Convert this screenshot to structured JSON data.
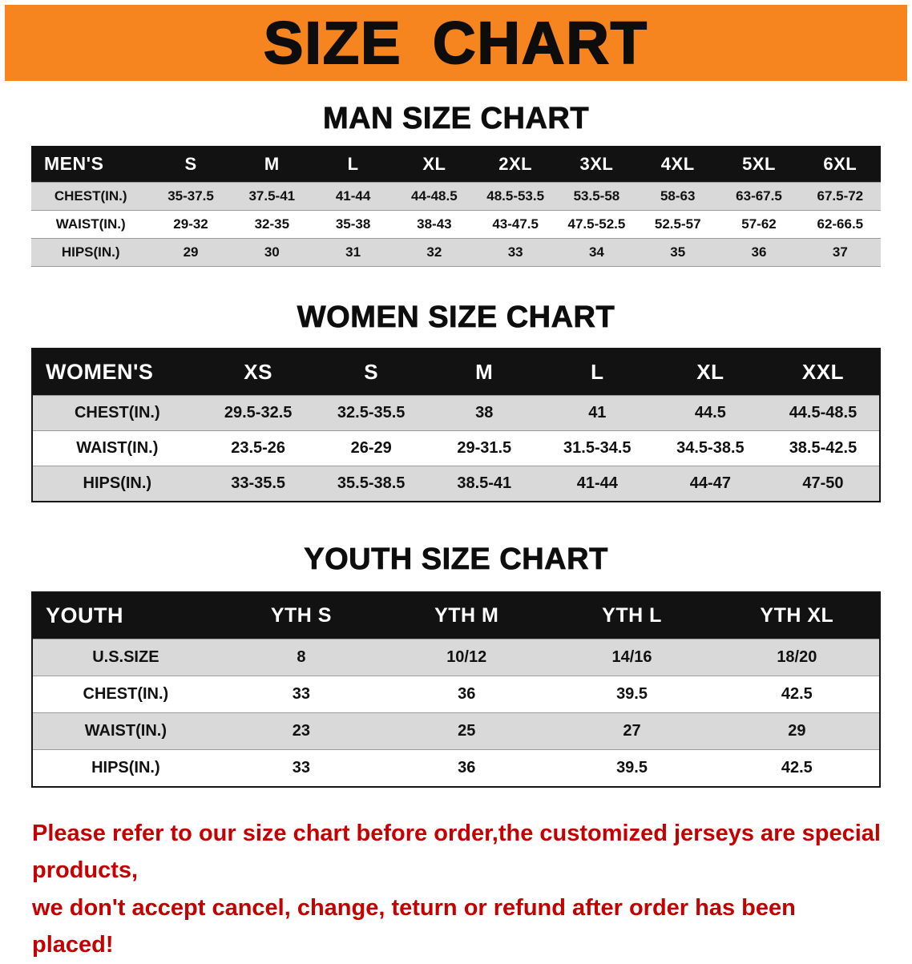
{
  "banner": {
    "title": "SIZE CHART",
    "bg_color": "#F6851F"
  },
  "sections": [
    {
      "id": "men",
      "title": "MAN SIZE CHART",
      "table": {
        "header": [
          "MEN'S",
          "S",
          "M",
          "L",
          "XL",
          "2XL",
          "3XL",
          "4XL",
          "5XL",
          "6XL"
        ],
        "rows": [
          [
            "CHEST(IN.)",
            "35-37.5",
            "37.5-41",
            "41-44",
            "44-48.5",
            "48.5-53.5",
            "53.5-58",
            "58-63",
            "63-67.5",
            "67.5-72"
          ],
          [
            "WAIST(IN.)",
            "29-32",
            "32-35",
            "35-38",
            "38-43",
            "43-47.5",
            "47.5-52.5",
            "52.5-57",
            "57-62",
            "62-66.5"
          ],
          [
            "HIPS(IN.)",
            "29",
            "30",
            "31",
            "32",
            "33",
            "34",
            "35",
            "36",
            "37"
          ]
        ]
      }
    },
    {
      "id": "women",
      "title": "WOMEN SIZE CHART",
      "table": {
        "header": [
          "WOMEN'S",
          "XS",
          "S",
          "M",
          "L",
          "XL",
          "XXL"
        ],
        "rows": [
          [
            "CHEST(IN.)",
            "29.5-32.5",
            "32.5-35.5",
            "38",
            "41",
            "44.5",
            "44.5-48.5"
          ],
          [
            "WAIST(IN.)",
            "23.5-26",
            "26-29",
            "29-31.5",
            "31.5-34.5",
            "34.5-38.5",
            "38.5-42.5"
          ],
          [
            "HIPS(IN.)",
            "33-35.5",
            "35.5-38.5",
            "38.5-41",
            "41-44",
            "44-47",
            "47-50"
          ]
        ]
      }
    },
    {
      "id": "youth",
      "title": "YOUTH SIZE CHART",
      "table": {
        "header": [
          "YOUTH",
          "YTH S",
          "YTH M",
          "YTH L",
          "YTH XL"
        ],
        "rows": [
          [
            "U.S.SIZE",
            "8",
            "10/12",
            "14/16",
            "18/20"
          ],
          [
            "CHEST(IN.)",
            "33",
            "36",
            "39.5",
            "42.5"
          ],
          [
            "WAIST(IN.)",
            "23",
            "25",
            "27",
            "29"
          ],
          [
            "HIPS(IN.)",
            "33",
            "36",
            "39.5",
            "42.5"
          ]
        ]
      }
    }
  ],
  "notice": {
    "line1": "Please refer to our size chart before order,the customized jerseys are special products,",
    "line2": "we don't accept cancel, change, teturn or refund after order has been placed!",
    "color": "#C40000"
  },
  "colors": {
    "banner_orange": "#F6851F",
    "table_header_black": "#121212",
    "row_stripe_gray": "#D9D9D9",
    "notice_red": "#C40000"
  }
}
